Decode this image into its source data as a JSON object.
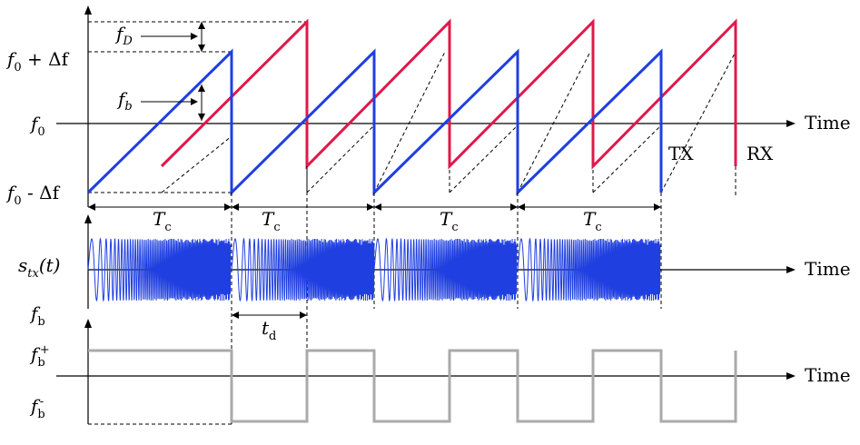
{
  "labels": {
    "time_top": "Time",
    "time_mid": "Time",
    "time_bottom": "Time",
    "tx": "TX",
    "rx": "RX",
    "f0_main": "f",
    "f0_sub": "0",
    "f0_plus_main": "f",
    "f0_plus_sub": "0",
    "f0_plus_rest": " + Δf",
    "f0_minus_main": "f",
    "f0_minus_sub": "0",
    "f0_minus_rest": " - Δf",
    "fD_main": "f",
    "fD_sub": "D",
    "fb_main": "f",
    "fb_sub": "b",
    "tc_main": "T",
    "tc_sub": "c",
    "stx_main": "s",
    "stx_sub": "tx",
    "stx_rest": "(t)",
    "fb_axis_main": "f",
    "fb_axis_sub": "b",
    "td_main": "t",
    "td_sub": "d",
    "fbplus_main": "f",
    "fbplus_sub": "b",
    "fbplus_sup": "+",
    "fbminus_main": "f",
    "fbminus_sub": "b",
    "fbminus_sup": "-"
  },
  "colors": {
    "tx": "#1f3fe0",
    "rx": "#e0184a",
    "beat": "#aaaaaa"
  }
}
